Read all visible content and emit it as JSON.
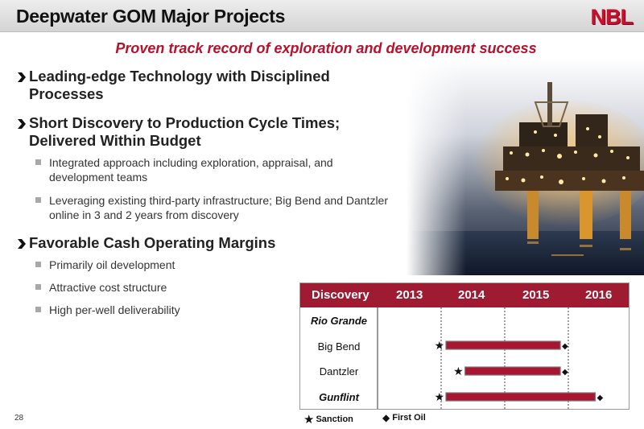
{
  "header": {
    "title": "Deepwater GOM Major Projects",
    "logo": "NBL"
  },
  "subtitle": "Proven track record of exploration and development success",
  "bullets": [
    {
      "text": "Leading-edge Technology with Disciplined Processes",
      "sub": []
    },
    {
      "text": "Short Discovery to Production Cycle Times; Delivered Within Budget",
      "sub": [
        "Integrated approach including exploration, appraisal, and development teams",
        "Leveraging existing third-party infrastructure; Big Bend and Dantzler online in 3 and 2 years from discovery"
      ]
    },
    {
      "text": "Favorable Cash Operating Margins",
      "sub": [
        "Primarily oil development",
        "Attractive cost structure",
        "High per-well deliverability"
      ]
    }
  ],
  "timeline": {
    "header": [
      "Discovery",
      "2013",
      "2014",
      "2015",
      "2016"
    ],
    "rows": [
      {
        "name": "Rio Grande",
        "emphasis": true,
        "sanction": null,
        "first_oil": null
      },
      {
        "name": "Big Bend",
        "emphasis": false,
        "sanction": 2014.0,
        "first_oil": 2015.95
      },
      {
        "name": "Dantzler",
        "emphasis": false,
        "sanction": 2014.3,
        "first_oil": 2015.95
      },
      {
        "name": "Gunflint",
        "emphasis": true,
        "sanction": 2014.0,
        "first_oil": 2016.5
      }
    ],
    "colors": {
      "header": "#9e1b32",
      "bar": "#a8162f"
    }
  },
  "legend": {
    "sanction": "Sanction",
    "first_oil": "First Oil"
  },
  "page_number": "28"
}
